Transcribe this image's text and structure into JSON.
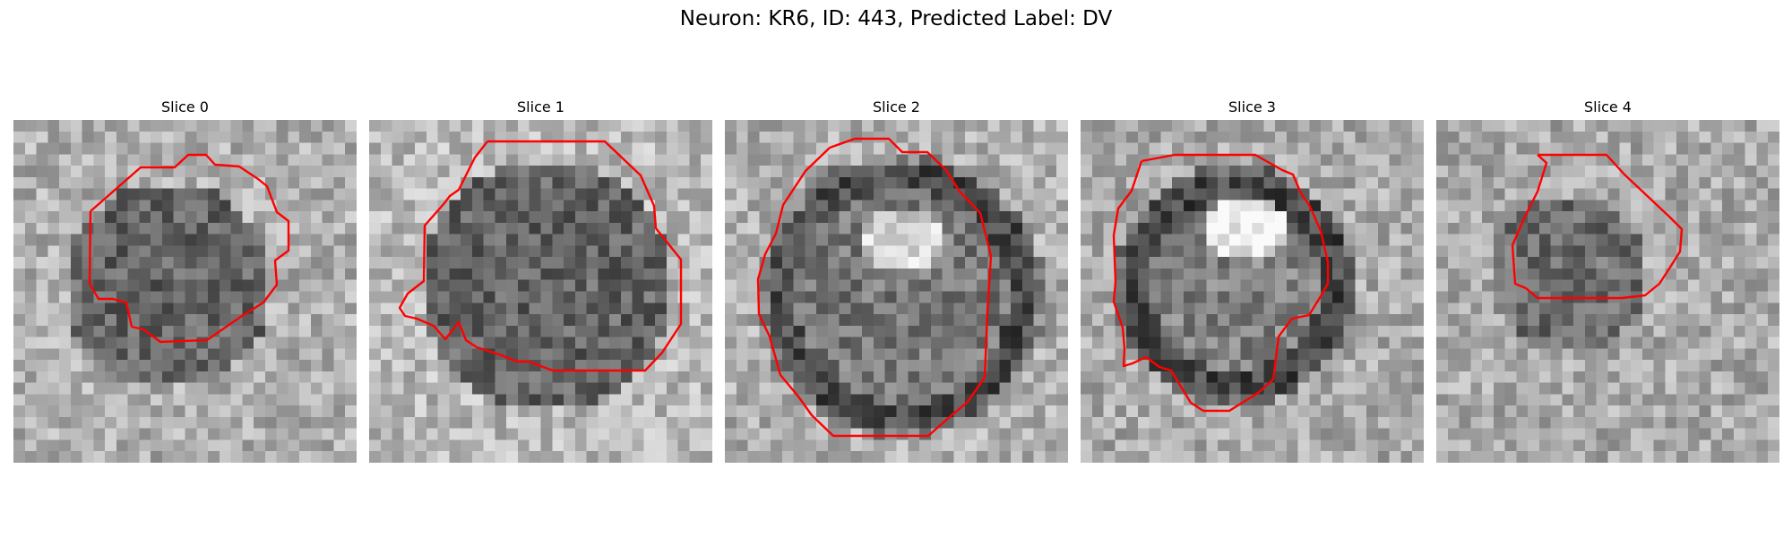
{
  "figure": {
    "title": "Neuron: KR6, ID: 443, Predicted Label: DV"
  },
  "panels": [
    {
      "title": "Slice 0",
      "outline_color": "#ff0000"
    },
    {
      "title": "Slice 1",
      "outline_color": "#ff0000"
    },
    {
      "title": "Slice 2",
      "outline_color": "#ff0000"
    },
    {
      "title": "Slice 3",
      "outline_color": "#ff0000"
    },
    {
      "title": "Slice 4",
      "outline_color": "#ff0000"
    }
  ]
}
